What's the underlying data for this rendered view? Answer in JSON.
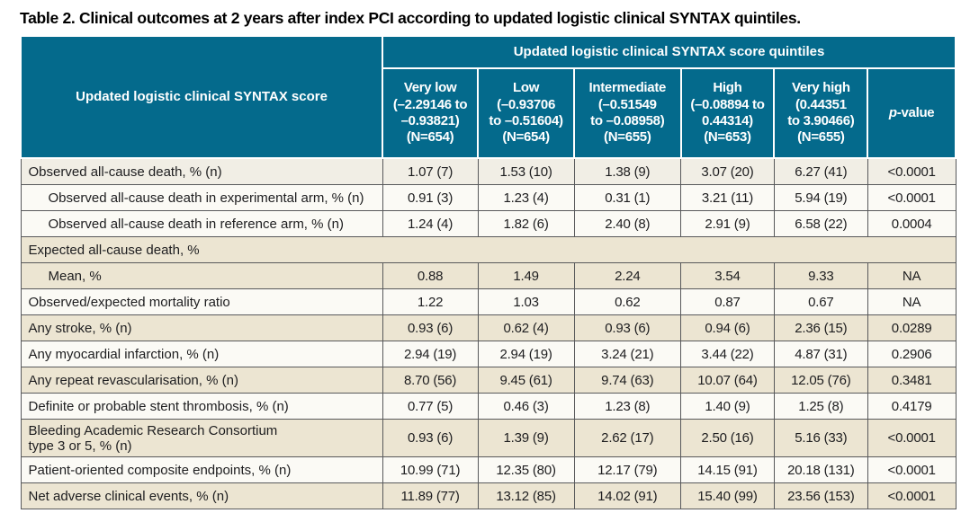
{
  "title": "Table 2. Clinical outcomes at 2 years after index PCI according to updated logistic clinical SYNTAX quintiles.",
  "colors": {
    "header_teal": "#046A8C",
    "row_beige": "#ECE5D2",
    "row_white": "#FBFAF5",
    "border_gray": "#58595B"
  },
  "header": {
    "stub": "Updated logistic clinical SYNTAX score",
    "quintiles_span": "Updated logistic clinical SYNTAX score quintiles",
    "p_italic": "p",
    "p_rest": "-value",
    "quintiles": [
      {
        "lines": [
          "Very low",
          "(–2.29146 to",
          "–0.93821)",
          "(N=654)"
        ]
      },
      {
        "lines": [
          "Low",
          "(–0.93706",
          "to –0.51604)",
          "(N=654)"
        ]
      },
      {
        "lines": [
          "Intermediate",
          "(–0.51549",
          "to –0.08958)",
          "(N=655)"
        ]
      },
      {
        "lines": [
          "High",
          "(–0.08894 to",
          "0.44314)",
          "(N=653)"
        ]
      },
      {
        "lines": [
          "Very high",
          "(0.44351",
          "to 3.90466)",
          "(N=655)"
        ]
      }
    ]
  },
  "rows": [
    {
      "label": "Observed all-cause death, % (n)",
      "values": [
        "1.07 (7)",
        "1.53 (10)",
        "1.38 (9)",
        "3.07 (20)",
        "6.27 (41)",
        "<0.0001"
      ]
    },
    {
      "label": "Observed all-cause death in experimental arm, % (n)",
      "values": [
        "0.91 (3)",
        "1.23 (4)",
        "0.31 (1)",
        "3.21 (11)",
        "5.94 (19)",
        "<0.0001"
      ]
    },
    {
      "label": "Observed all-cause death in reference arm, % (n)",
      "values": [
        "1.24 (4)",
        "1.82 (6)",
        "2.40 (8)",
        "2.91 (9)",
        "6.58 (22)",
        "0.0004"
      ]
    },
    {
      "label": "Expected all-cause death, %",
      "values": []
    },
    {
      "label": "Mean, %",
      "values": [
        "0.88",
        "1.49",
        "2.24",
        "3.54",
        "9.33",
        "NA"
      ]
    },
    {
      "label": "Observed/expected mortality ratio",
      "values": [
        "1.22",
        "1.03",
        "0.62",
        "0.87",
        "0.67",
        "NA"
      ]
    },
    {
      "label": "Any stroke, % (n)",
      "values": [
        "0.93 (6)",
        "0.62 (4)",
        "0.93 (6)",
        "0.94 (6)",
        "2.36 (15)",
        "0.0289"
      ]
    },
    {
      "label": "Any myocardial infarction, % (n)",
      "values": [
        "2.94 (19)",
        "2.94 (19)",
        "3.24 (21)",
        "3.44 (22)",
        "4.87 (31)",
        "0.2906"
      ]
    },
    {
      "label": "Any repeat revascularisation, % (n)",
      "values": [
        "8.70 (56)",
        "9.45 (61)",
        "9.74 (63)",
        "10.07 (64)",
        "12.05 (76)",
        "0.3481"
      ]
    },
    {
      "label": "Definite or probable stent thrombosis, % (n)",
      "values": [
        "0.77 (5)",
        "0.46 (3)",
        "1.23 (8)",
        "1.40 (9)",
        "1.25 (8)",
        "0.4179"
      ]
    },
    {
      "label": "Bleeding Academic Research Consortium",
      "label2": "type 3 or 5, % (n)",
      "values": [
        "0.93 (6)",
        "1.39 (9)",
        "2.62 (17)",
        "2.50 (16)",
        "5.16 (33)",
        "<0.0001"
      ]
    },
    {
      "label": "Patient-oriented composite endpoints, % (n)",
      "values": [
        "10.99 (71)",
        "12.35 (80)",
        "12.17 (79)",
        "14.15 (91)",
        "20.18 (131)",
        "<0.0001"
      ]
    },
    {
      "label": "Net adverse clinical events, % (n)",
      "values": [
        "11.89 (77)",
        "13.12 (85)",
        "14.02 (91)",
        "15.40 (99)",
        "23.56 (153)",
        "<0.0001"
      ]
    }
  ]
}
